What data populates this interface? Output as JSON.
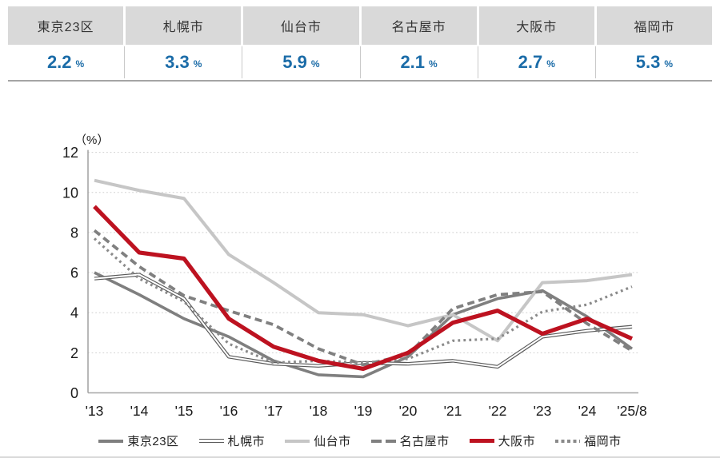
{
  "summary_table": {
    "unit": "%",
    "cities": [
      {
        "name": "東京23区",
        "value": "2.2"
      },
      {
        "name": "札幌市",
        "value": "3.3"
      },
      {
        "name": "仙台市",
        "value": "5.9"
      },
      {
        "name": "名古屋市",
        "value": "2.1"
      },
      {
        "name": "大阪市",
        "value": "2.7"
      },
      {
        "name": "福岡市",
        "value": "5.3"
      }
    ]
  },
  "chart_data": {
    "type": "line",
    "title": "",
    "ylabel": "（%）",
    "xlabel": "",
    "ylim": [
      0,
      12
    ],
    "yticks": [
      0,
      2,
      4,
      6,
      8,
      10,
      12
    ],
    "grid": true,
    "legend_position": "bottom",
    "x": [
      "'13",
      "'14",
      "'15",
      "'16",
      "'17",
      "'18",
      "'19",
      "'20",
      "'21",
      "'22",
      "'23",
      "'24",
      "'25/8"
    ],
    "series": [
      {
        "name": "東京23区",
        "style": "solid",
        "color": "#7f7f7f",
        "width": 3.6,
        "values": [
          6.0,
          4.9,
          3.7,
          2.8,
          1.6,
          0.9,
          0.8,
          1.8,
          3.9,
          4.7,
          5.1,
          3.8,
          2.2
        ]
      },
      {
        "name": "札幌市",
        "style": "double",
        "color": "#595959",
        "width": 4.4,
        "values": [
          5.7,
          5.9,
          4.7,
          1.8,
          1.45,
          1.35,
          1.5,
          1.45,
          1.6,
          1.3,
          2.8,
          3.1,
          3.3
        ]
      },
      {
        "name": "仙台市",
        "style": "solid",
        "color": "#c6c6c6",
        "width": 4,
        "values": [
          10.6,
          10.1,
          9.7,
          6.9,
          5.5,
          4.0,
          3.9,
          3.35,
          3.9,
          2.6,
          5.5,
          5.6,
          5.9
        ]
      },
      {
        "name": "名古屋市",
        "style": "dashed",
        "color": "#808080",
        "width": 3.8,
        "values": [
          8.1,
          6.3,
          4.85,
          4.1,
          3.4,
          2.2,
          1.4,
          1.9,
          4.2,
          4.9,
          5.05,
          3.45,
          2.1
        ]
      },
      {
        "name": "大阪市",
        "style": "solid",
        "color": "#bd1220",
        "width": 5.2,
        "values": [
          9.3,
          7.0,
          6.7,
          3.7,
          2.3,
          1.6,
          1.2,
          2.0,
          3.5,
          4.1,
          2.95,
          3.7,
          2.7
        ]
      },
      {
        "name": "福岡市",
        "style": "dotted",
        "color": "#8a8a8a",
        "width": 3.2,
        "values": [
          7.7,
          5.7,
          4.55,
          2.45,
          1.5,
          1.6,
          1.5,
          1.7,
          2.6,
          2.7,
          4.05,
          4.4,
          5.3
        ]
      }
    ],
    "draw_order": [
      0,
      1,
      2,
      3,
      5,
      4
    ],
    "axis_color": "#a6a6a6",
    "gridline_color": "#cfcfcf",
    "tick_label_color": "#1a1a1a"
  }
}
